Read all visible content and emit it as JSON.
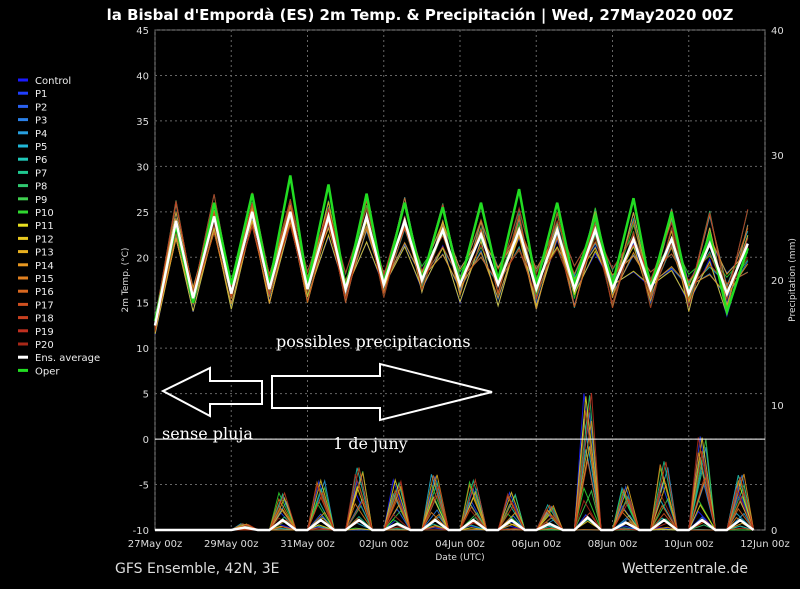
{
  "chart_data": {
    "type": "line",
    "title": "la Bisbal d'Empordà  (ES)  2m Temp. & Precipitación | Wed, 27May2020 00Z",
    "xlabel": "Date (UTC)",
    "ylabel": "2m Temp. (°C)",
    "y2label": "Precipitation (mm)",
    "ylim": [
      -10,
      45
    ],
    "y2lim": [
      0,
      40
    ],
    "xlim": [
      0,
      16
    ],
    "yticks": [
      -10,
      -5,
      0,
      5,
      10,
      15,
      20,
      25,
      30,
      35,
      40,
      45
    ],
    "y2ticks": [
      0,
      10,
      20,
      30,
      40
    ],
    "x_tick_labels": [
      "27May 00z",
      "29May 00z",
      "31May 00z",
      "02Jun 00z",
      "04Jun 00z",
      "06Jun 00z",
      "08Jun 00z",
      "10Jun 00z",
      "12Jun 00z"
    ],
    "x_tick_days": [
      0,
      2,
      4,
      6,
      8,
      10,
      12,
      14,
      16
    ],
    "grid": "dashed",
    "legend_position": "left",
    "legend": [
      {
        "name": "Control",
        "color": "#1a1aff"
      },
      {
        "name": "P1",
        "color": "#2040ff"
      },
      {
        "name": "P2",
        "color": "#2a60f0"
      },
      {
        "name": "P3",
        "color": "#2a80e8"
      },
      {
        "name": "P4",
        "color": "#28a0e0"
      },
      {
        "name": "P5",
        "color": "#20b8d8"
      },
      {
        "name": "P6",
        "color": "#20c8b8"
      },
      {
        "name": "P7",
        "color": "#20c890"
      },
      {
        "name": "P8",
        "color": "#30c870"
      },
      {
        "name": "P9",
        "color": "#40d050"
      },
      {
        "name": "P10",
        "color": "#30d830"
      },
      {
        "name": "P11",
        "color": "#e8e020"
      },
      {
        "name": "P12",
        "color": "#e8c820"
      },
      {
        "name": "P13",
        "color": "#e8b020"
      },
      {
        "name": "P14",
        "color": "#e89820"
      },
      {
        "name": "P15",
        "color": "#e08020"
      },
      {
        "name": "P16",
        "color": "#d86820"
      },
      {
        "name": "P17",
        "color": "#d05020"
      },
      {
        "name": "P18",
        "color": "#c84020"
      },
      {
        "name": "P19",
        "color": "#c03020"
      },
      {
        "name": "P20",
        "color": "#a82818"
      },
      {
        "name": "Ens. average",
        "color": "#ffffff"
      },
      {
        "name": "Oper",
        "color": "#22dd22"
      }
    ],
    "ens_average_temp_daily_max_min": [
      [
        24.0,
        12.5
      ],
      [
        24.5,
        15.5
      ],
      [
        25.0,
        16.0
      ],
      [
        25.0,
        16.5
      ],
      [
        24.5,
        16.5
      ],
      [
        24.5,
        16.5
      ],
      [
        24.0,
        17.0
      ],
      [
        23.0,
        17.5
      ],
      [
        22.5,
        17.0
      ],
      [
        23.0,
        17.0
      ],
      [
        23.0,
        16.5
      ],
      [
        23.0,
        16.5
      ],
      [
        22.0,
        16.5
      ],
      [
        22.0,
        16.5
      ],
      [
        21.5,
        16.0
      ],
      [
        21.5,
        16.0
      ]
    ],
    "oper_temp_daily_max_min": [
      [
        23.5,
        13.0
      ],
      [
        26.0,
        15.0
      ],
      [
        27.0,
        17.0
      ],
      [
        29.0,
        17.0
      ],
      [
        28.0,
        17.0
      ],
      [
        27.0,
        16.5
      ],
      [
        26.0,
        17.0
      ],
      [
        25.5,
        17.5
      ],
      [
        26.0,
        17.0
      ],
      [
        27.5,
        17.5
      ],
      [
        26.0,
        17.0
      ],
      [
        24.5,
        17.0
      ],
      [
        26.5,
        17.0
      ],
      [
        25.0,
        16.5
      ],
      [
        22.5,
        16.0
      ],
      [
        21.0,
        14.0
      ]
    ],
    "precip_max_mm_by_day": [
      0,
      0,
      0.5,
      3,
      4,
      5,
      4,
      4.5,
      4,
      3,
      2,
      11,
      3.5,
      5.5,
      7.5,
      4.5
    ],
    "ens_average_precip_mm_by_day": [
      0,
      0,
      0.2,
      0.8,
      0.8,
      0.8,
      0.5,
      0.8,
      0.8,
      0.8,
      0.5,
      1.0,
      0.6,
      0.8,
      0.8,
      0.8
    ]
  },
  "annotations": {
    "possibles": "possibles precipitacions",
    "sense": "sense pluja",
    "juny": "1 de juny"
  },
  "footer": {
    "left": "GFS Ensemble, 42N, 3E",
    "right": "Wetterzentrale.de"
  }
}
